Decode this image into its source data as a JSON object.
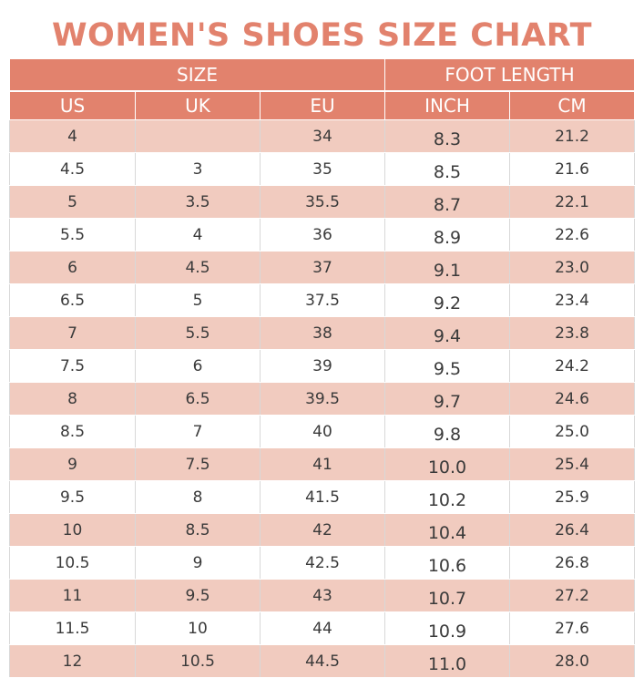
{
  "title": "WOMEN'S SHOES SIZE CHART",
  "header": {
    "groups": [
      "SIZE",
      "FOOT LENGTH"
    ],
    "columns": [
      "US",
      "UK",
      "EU",
      "INCH",
      "CM"
    ]
  },
  "rows": [
    [
      "4",
      "",
      "34",
      "8.3",
      "21.2"
    ],
    [
      "4.5",
      "3",
      "35",
      "8.5",
      "21.6"
    ],
    [
      "5",
      "3.5",
      "35.5",
      "8.7",
      "22.1"
    ],
    [
      "5.5",
      "4",
      "36",
      "8.9",
      "22.6"
    ],
    [
      "6",
      "4.5",
      "37",
      "9.1",
      "23.0"
    ],
    [
      "6.5",
      "5",
      "37.5",
      "9.2",
      "23.4"
    ],
    [
      "7",
      "5.5",
      "38",
      "9.4",
      "23.8"
    ],
    [
      "7.5",
      "6",
      "39",
      "9.5",
      "24.2"
    ],
    [
      "8",
      "6.5",
      "39.5",
      "9.7",
      "24.6"
    ],
    [
      "8.5",
      "7",
      "40",
      "9.8",
      "25.0"
    ],
    [
      "9",
      "7.5",
      "41",
      "10.0",
      "25.4"
    ],
    [
      "9.5",
      "8",
      "41.5",
      "10.2",
      "25.9"
    ],
    [
      "10",
      "8.5",
      "42",
      "10.4",
      "26.4"
    ],
    [
      "10.5",
      "9",
      "42.5",
      "10.6",
      "26.8"
    ],
    [
      "11",
      "9.5",
      "43",
      "10.7",
      "27.2"
    ],
    [
      "11.5",
      "10",
      "44",
      "10.9",
      "27.6"
    ],
    [
      "12",
      "10.5",
      "44.5",
      "11.0",
      "28.0"
    ]
  ],
  "colors": {
    "header_bg": "#e2826d",
    "title_text": "#e2826d",
    "stripe": "#f1cbbf"
  }
}
